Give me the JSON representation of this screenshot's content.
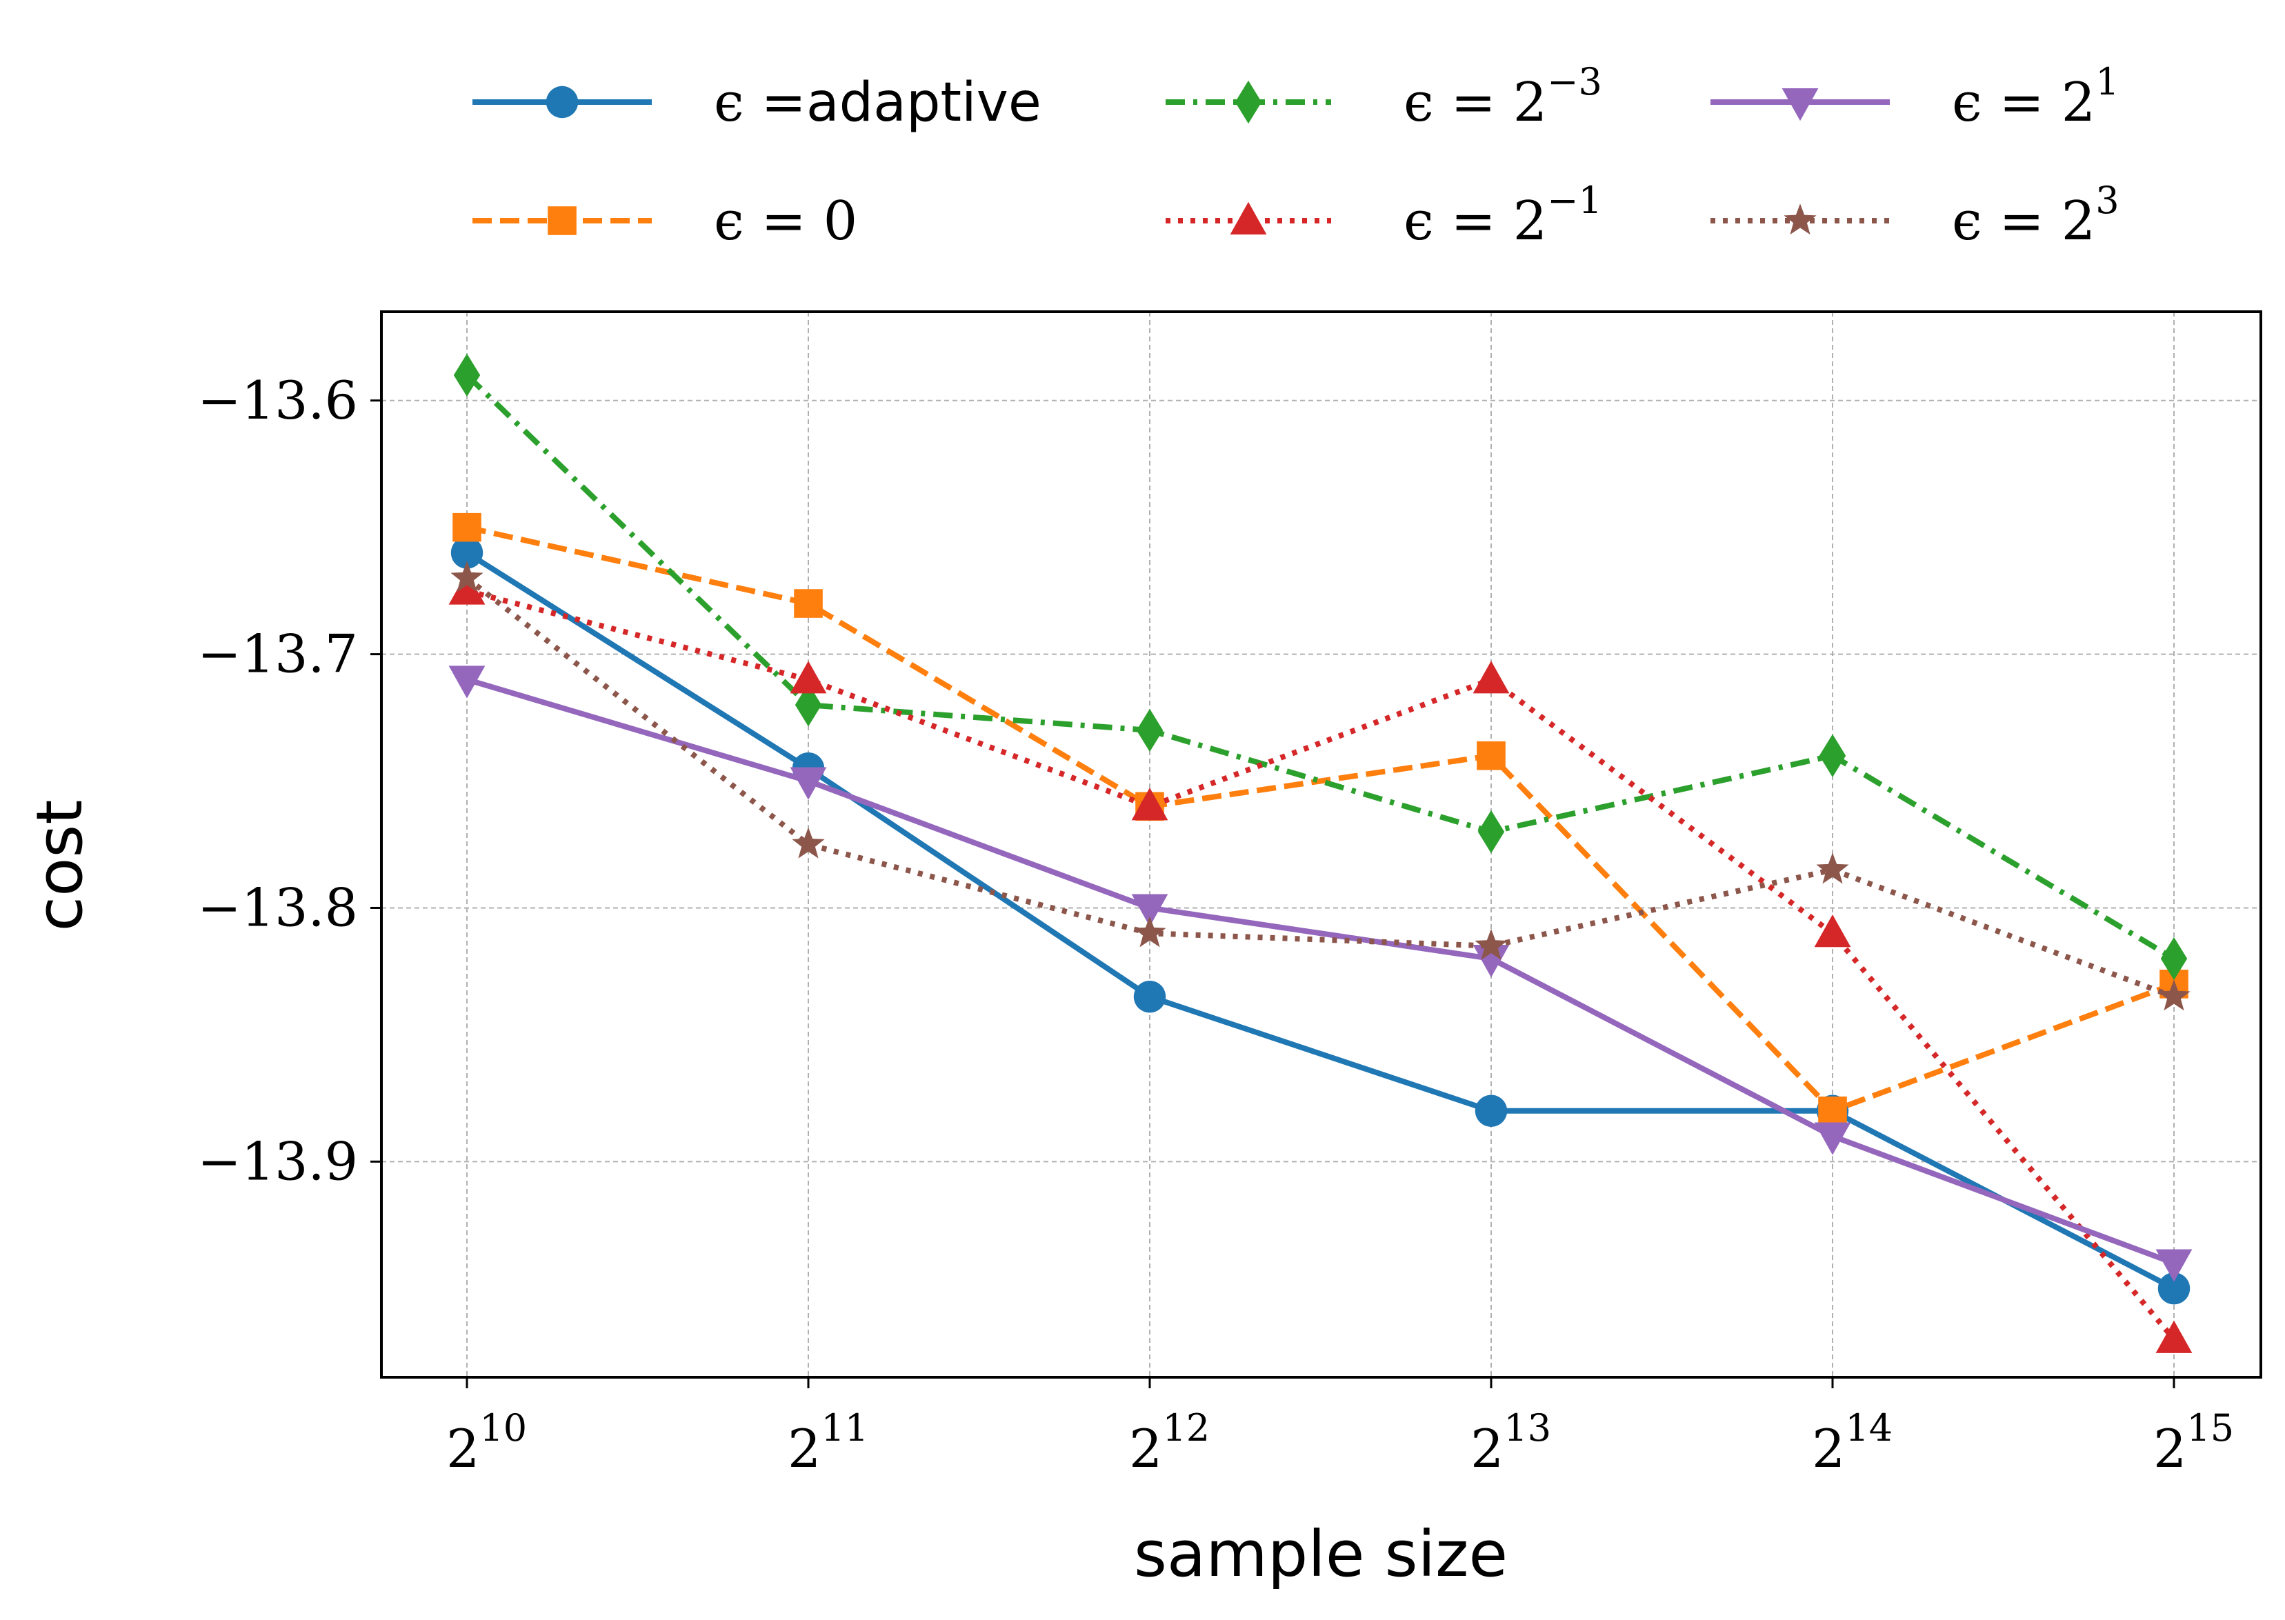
{
  "chart_data": {
    "type": "line",
    "xlabel": "sample size",
    "ylabel": "cost",
    "x_base": "2",
    "x_exponents": [
      "10",
      "11",
      "12",
      "13",
      "14",
      "15"
    ],
    "ylim": [
      -13.985,
      -13.565
    ],
    "yticks": [
      "−13.6",
      "−13.7",
      "−13.8",
      "−13.9"
    ],
    "ytick_values": [
      -13.6,
      -13.7,
      -13.8,
      -13.9
    ],
    "grid": true,
    "legend_position": "top, outside plot, 3 columns",
    "series": [
      {
        "name": "ϵ =adaptive",
        "legend_symbol": "ϵ",
        "legend_rest": " =adaptive",
        "legend_exp": "",
        "color": "#1f77b4",
        "dash": "solid",
        "marker": "circle",
        "values": [
          -13.66,
          -13.745,
          -13.835,
          -13.88,
          -13.88,
          -13.95
        ]
      },
      {
        "name": "ϵ = 0",
        "legend_symbol": "ϵ",
        "legend_rest": " = 0",
        "legend_exp": "",
        "color": "#ff7f0e",
        "dash": "dashed",
        "marker": "square",
        "values": [
          -13.65,
          -13.68,
          -13.76,
          -13.74,
          -13.88,
          -13.83
        ]
      },
      {
        "name": "ϵ = 2^−3",
        "legend_symbol": "ϵ",
        "legend_rest": " = 2",
        "legend_exp": "−3",
        "color": "#2ca02c",
        "dash": "dashdot",
        "marker": "diamond",
        "values": [
          -13.59,
          -13.72,
          -13.73,
          -13.77,
          -13.74,
          -13.82
        ]
      },
      {
        "name": "ϵ = 2^−1",
        "legend_symbol": "ϵ",
        "legend_rest": " = 2",
        "legend_exp": "−1",
        "color": "#d62728",
        "dash": "dotted",
        "marker": "triangle-up",
        "values": [
          -13.675,
          -13.71,
          -13.76,
          -13.71,
          -13.81,
          -13.97
        ]
      },
      {
        "name": "ϵ = 2^1",
        "legend_symbol": "ϵ",
        "legend_rest": " = 2",
        "legend_exp": "1",
        "color": "#9467bd",
        "dash": "solid",
        "marker": "triangle-down",
        "values": [
          -13.71,
          -13.75,
          -13.8,
          -13.82,
          -13.89,
          -13.94
        ]
      },
      {
        "name": "ϵ = 2^3",
        "legend_symbol": "ϵ",
        "legend_rest": " = 2",
        "legend_exp": "3",
        "color": "#8c564b",
        "dash": "dotted",
        "marker": "star",
        "values": [
          -13.67,
          -13.775,
          -13.81,
          -13.815,
          -13.785,
          -13.835
        ]
      }
    ]
  }
}
